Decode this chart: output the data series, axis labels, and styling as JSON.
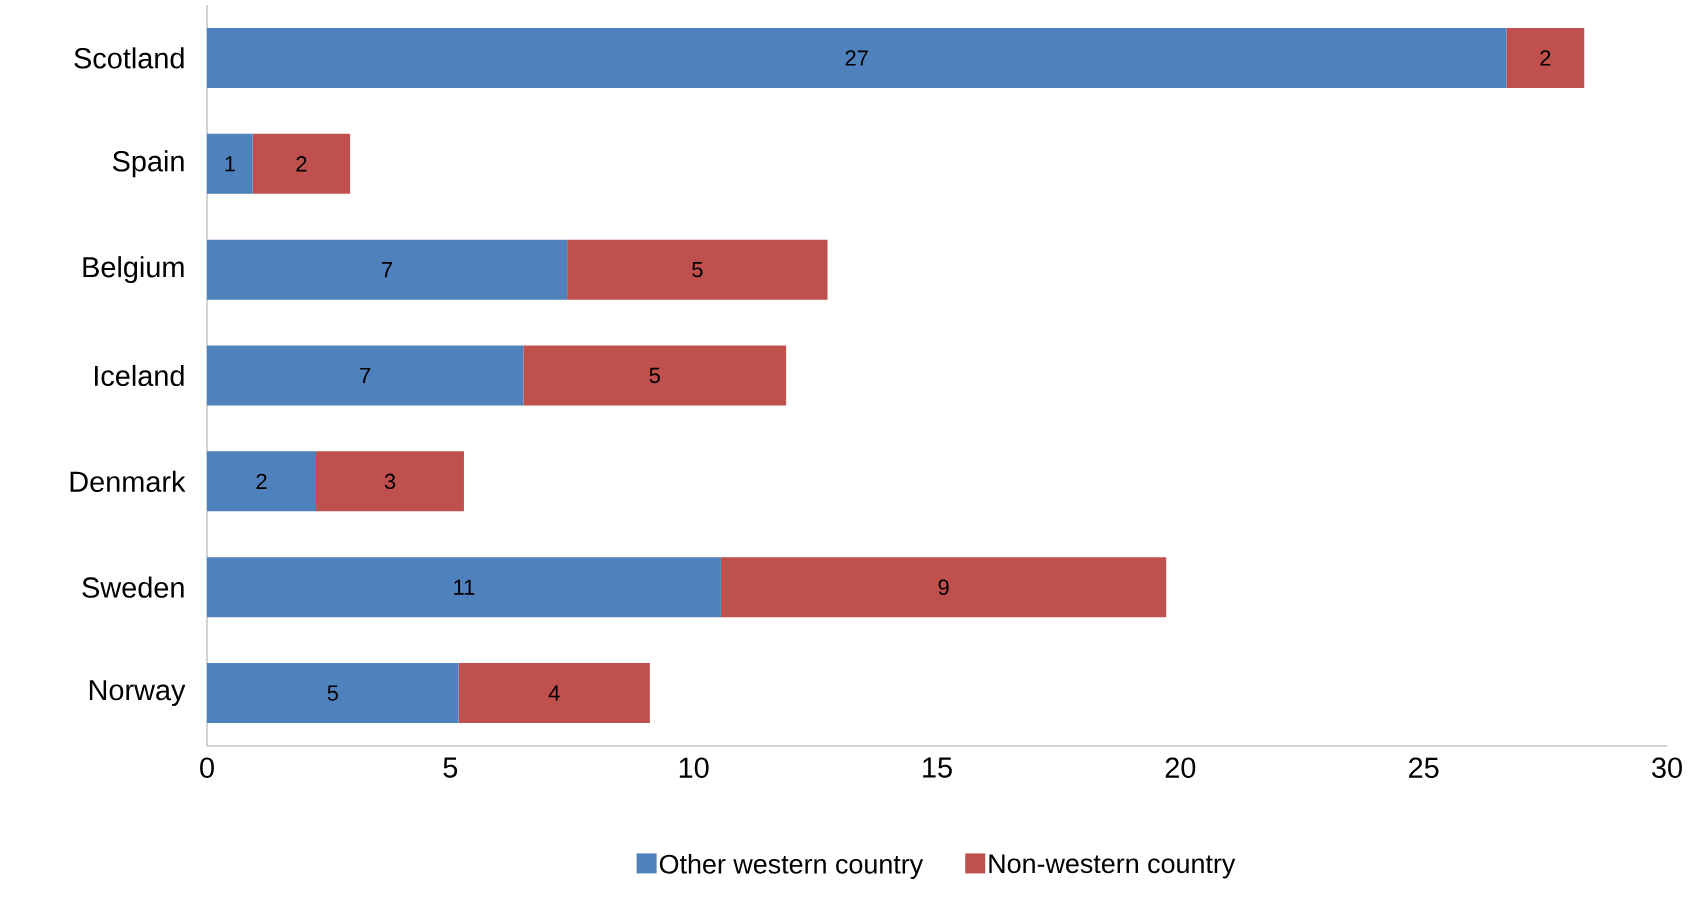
{
  "chart_data": {
    "type": "bar",
    "orientation": "horizontal",
    "stacked": true,
    "categories": [
      "Scotland",
      "Spain",
      "Belgium",
      "Iceland",
      "Denmark",
      "Sweden",
      "Norway"
    ],
    "series": [
      {
        "name": "Other western country",
        "color": "#4f81bd",
        "values": [
          26.7,
          0.94,
          7.4,
          6.5,
          2.24,
          10.56,
          5.17
        ],
        "value_labels": [
          "27",
          "1",
          "7",
          "7",
          "2",
          "11",
          "5"
        ]
      },
      {
        "name": "Non-western country",
        "color": "#c0504d",
        "values": [
          1.6,
          2.0,
          5.35,
          5.4,
          3.04,
          9.15,
          3.93
        ],
        "value_labels": [
          "2",
          "2",
          "5",
          "5",
          "3",
          "9",
          "4"
        ]
      }
    ],
    "xlim": [
      0,
      30
    ],
    "xticks": [
      0,
      5,
      10,
      15,
      20,
      25,
      30
    ],
    "grid": false,
    "legend": "bottom"
  }
}
